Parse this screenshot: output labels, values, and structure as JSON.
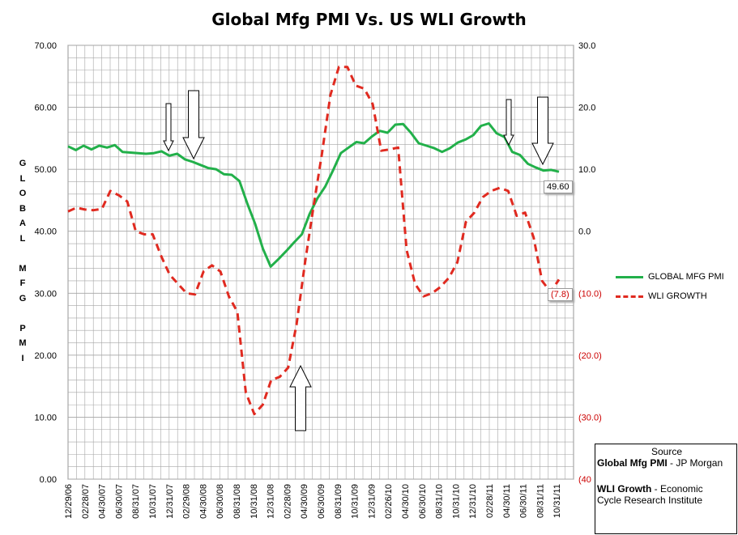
{
  "title": "Global Mfg PMI Vs. US WLI Growth",
  "chart_data": {
    "type": "line",
    "title": "Global Mfg PMI Vs. US WLI Growth",
    "ylabel_left": "GLOBAL MFG PMI",
    "ylim_left": [
      0,
      70
    ],
    "yticks_left": [
      "0.00",
      "10.00",
      "20.00",
      "30.00",
      "40.00",
      "50.00",
      "60.00",
      "70.00"
    ],
    "ylim_right": [
      -40,
      30
    ],
    "yticks_right": [
      "30.0",
      "20.0",
      "10.0",
      "0.0",
      "(10.0)",
      "(20.0)",
      "(30.0)",
      "(40"
    ],
    "xtick_labels": [
      "12/29/06",
      "02/28/07",
      "04/30/07",
      "06/30/07",
      "08/31/07",
      "10/31/07",
      "12/31/07",
      "02/29/08",
      "04/30/08",
      "06/30/08",
      "08/31/08",
      "10/31/08",
      "12/31/08",
      "02/28/09",
      "04/30/09",
      "06/30/09",
      "08/31/09",
      "10/31/09",
      "12/31/09",
      "02/26/10",
      "04/30/10",
      "06/30/10",
      "08/31/10",
      "10/31/10",
      "12/31/10",
      "02/28/11",
      "04/30/11",
      "06/30/11",
      "08/31/11",
      "10/31/11"
    ],
    "grid": true,
    "legend_position": "right",
    "series": [
      {
        "name": "GLOBAL MFG PMI",
        "axis": "left",
        "color": "#22b04a",
        "style": "solid",
        "values": [
          53.7,
          53.1,
          53.8,
          53.2,
          53.8,
          53.5,
          53.9,
          52.8,
          52.7,
          52.6,
          52.5,
          52.6,
          52.9,
          52.2,
          52.5,
          51.6,
          51.2,
          50.7,
          50.2,
          50.0,
          49.2,
          49.1,
          48.1,
          44.5,
          41.2,
          37.2,
          34.3,
          35.5,
          36.8,
          38.2,
          39.5,
          42.8,
          45.3,
          47.2,
          49.8,
          52.6,
          53.5,
          54.4,
          54.2,
          55.3,
          56.2,
          55.9,
          57.2,
          57.3,
          55.9,
          54.2,
          53.8,
          53.4,
          52.8,
          53.4,
          54.3,
          54.8,
          55.5,
          57.0,
          57.4,
          55.8,
          55.2,
          52.8,
          52.3,
          50.9,
          50.3,
          49.8,
          49.9,
          49.6
        ]
      },
      {
        "name": "WLI GROWTH",
        "axis": "right",
        "color": "#e02a20",
        "style": "dashed",
        "values": [
          3.2,
          3.8,
          3.5,
          3.4,
          3.6,
          6.5,
          5.8,
          4.8,
          0,
          -0.5,
          -0.5,
          -4,
          -7,
          -8.5,
          -10,
          -10.2,
          -6.5,
          -5.5,
          -6.5,
          -10.5,
          -13,
          -26,
          -29.5,
          -28,
          -24,
          -23.5,
          -22,
          -15,
          -5,
          4,
          12.5,
          22,
          26.5,
          26.5,
          23.5,
          23,
          20.5,
          13,
          13.2,
          13.5,
          -3,
          -8.5,
          -10.5,
          -10,
          -9,
          -7.5,
          -5,
          1.5,
          3,
          5.5,
          6.5,
          7,
          6.5,
          2.5,
          3,
          -1,
          -8,
          -9.8,
          -7.8
        ]
      }
    ],
    "annotations": [
      "49.60",
      "(7.8)"
    ]
  },
  "legend": {
    "pmi_label": "GLOBAL MFG PMI",
    "wli_label": "WLI GROWTH"
  },
  "left_axis_label_chars": [
    "G",
    "L",
    "O",
    "B",
    "A",
    "L",
    "",
    "M",
    "F",
    "G",
    "",
    "P",
    "M",
    "I"
  ],
  "source_box": {
    "heading": "Source",
    "line1_bold": "Global Mfg PMI",
    "line1_rest": " - JP Morgan",
    "line2_bold": "WLI Growth",
    "line2_rest": " - Economic",
    "line3": "Cycle Research Institute"
  },
  "callouts": {
    "pmi_last": "49.60",
    "wli_last": "(7.8)"
  }
}
